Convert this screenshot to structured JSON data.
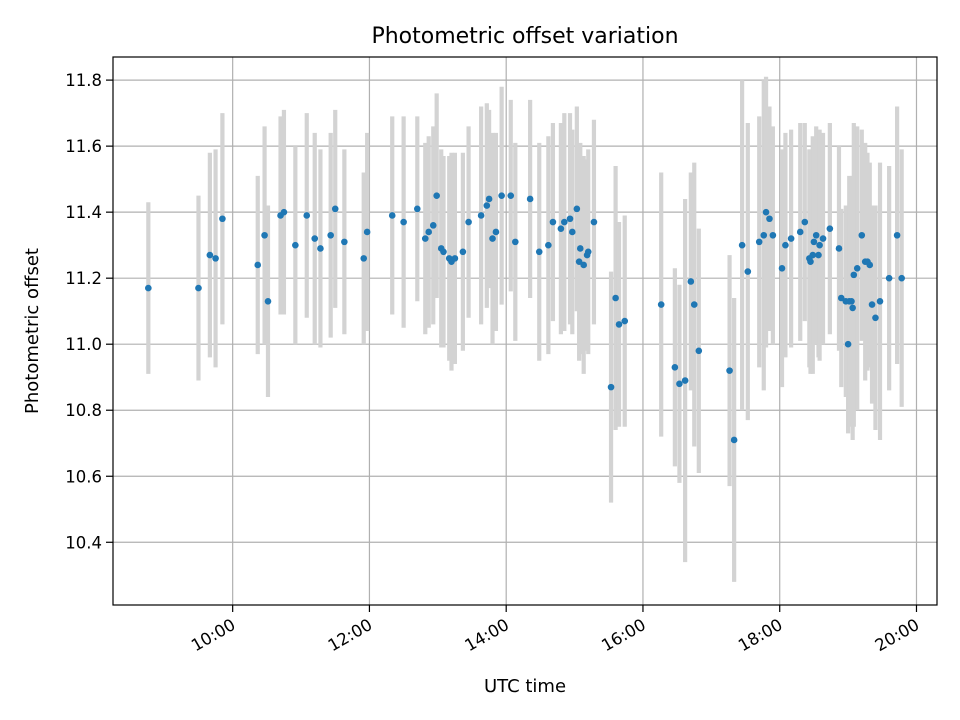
{
  "chart_data": {
    "type": "scatter",
    "title": "Photometric offset variation",
    "xlabel": "UTC time",
    "ylabel": "Photometric offset",
    "x_tick_labels": [
      "10:00",
      "12:00",
      "14:00",
      "16:00",
      "18:00",
      "20:00"
    ],
    "y_tick_labels": [
      "10.4",
      "10.6",
      "10.8",
      "11.0",
      "11.2",
      "11.4",
      "11.6",
      "11.8"
    ],
    "xlim": [
      "08:15",
      "20:18"
    ],
    "ylim": [
      10.21,
      11.87
    ],
    "grid": true,
    "colors": {
      "point": "#1f77b4",
      "errorbar": "#d3d3d3",
      "grid": "#b0b0b0"
    },
    "series": [
      {
        "x": [
          "08:46",
          "09:30",
          "09:40",
          "09:45",
          "09:51",
          "10:22",
          "10:28",
          "10:31",
          "10:42",
          "10:45",
          "10:55",
          "11:05",
          "11:12",
          "11:17",
          "11:26",
          "11:30",
          "11:38",
          "11:55",
          "11:58",
          "12:20",
          "12:30",
          "12:42",
          "12:49",
          "12:52",
          "12:56",
          "12:59",
          "13:03",
          "13:05",
          "13:10",
          "13:12",
          "13:15",
          "13:22",
          "13:27",
          "13:38",
          "13:43",
          "13:45",
          "13:48",
          "13:51",
          "13:56",
          "14:04",
          "14:08",
          "14:21",
          "14:29",
          "14:37",
          "14:41",
          "14:48",
          "14:51",
          "14:56",
          "14:58",
          "15:02",
          "15:04",
          "15:05",
          "15:08",
          "15:11",
          "15:12",
          "15:17",
          "15:32",
          "15:36",
          "15:39",
          "15:44",
          "16:16",
          "16:28",
          "16:32",
          "16:37",
          "16:42",
          "16:45",
          "16:49",
          "17:16",
          "17:20",
          "17:27",
          "17:32",
          "17:42",
          "17:46",
          "17:48",
          "17:51",
          "17:54",
          "18:02",
          "18:05",
          "18:10",
          "18:18",
          "18:22",
          "18:26",
          "18:27",
          "18:29",
          "18:30",
          "18:32",
          "18:34",
          "18:35",
          "18:38",
          "18:44",
          "18:52",
          "18:54",
          "18:58",
          "19:00",
          "19:01",
          "19:03",
          "19:04",
          "19:05",
          "19:08",
          "19:12",
          "19:15",
          "19:17",
          "19:19",
          "19:21",
          "19:24",
          "19:28",
          "19:36",
          "19:43",
          "19:47"
        ],
        "y": [
          11.17,
          11.17,
          11.27,
          11.26,
          11.38,
          11.24,
          11.33,
          11.13,
          11.39,
          11.4,
          11.3,
          11.39,
          11.32,
          11.29,
          11.33,
          11.41,
          11.31,
          11.26,
          11.34,
          11.39,
          11.37,
          11.41,
          11.32,
          11.34,
          11.36,
          11.45,
          11.29,
          11.28,
          11.26,
          11.25,
          11.26,
          11.28,
          11.37,
          11.39,
          11.42,
          11.44,
          11.32,
          11.34,
          11.45,
          11.45,
          11.31,
          11.44,
          11.28,
          11.3,
          11.37,
          11.35,
          11.37,
          11.38,
          11.34,
          11.41,
          11.25,
          11.29,
          11.24,
          11.27,
          11.28,
          11.37,
          10.87,
          11.14,
          11.06,
          11.07,
          11.12,
          10.93,
          10.88,
          10.89,
          11.19,
          11.12,
          10.98,
          10.92,
          10.71,
          11.3,
          11.22,
          11.31,
          11.33,
          11.4,
          11.38,
          11.33,
          11.23,
          11.3,
          11.32,
          11.34,
          11.37,
          11.26,
          11.25,
          11.27,
          11.31,
          11.33,
          11.27,
          11.3,
          11.32,
          11.35,
          11.29,
          11.14,
          11.13,
          11.0,
          11.13,
          11.13,
          11.11,
          11.21,
          11.23,
          11.33,
          11.25,
          11.25,
          11.24,
          11.12,
          11.08,
          11.13,
          11.2,
          11.33,
          11.2
        ],
        "error": [
          0.26,
          0.28,
          0.31,
          0.33,
          0.32,
          0.27,
          0.33,
          0.29,
          0.3,
          0.31,
          0.3,
          0.31,
          0.32,
          0.3,
          0.31,
          0.3,
          0.28,
          0.26,
          0.3,
          0.3,
          0.32,
          0.28,
          0.29,
          0.29,
          0.3,
          0.31,
          0.3,
          0.29,
          0.31,
          0.33,
          0.32,
          0.3,
          0.29,
          0.33,
          0.31,
          0.27,
          0.32,
          0.3,
          0.33,
          0.29,
          0.3,
          0.3,
          0.33,
          0.33,
          0.3,
          0.32,
          0.33,
          0.32,
          0.31,
          0.31,
          0.3,
          0.32,
          0.33,
          0.29,
          0.31,
          0.31,
          0.35,
          0.4,
          0.31,
          0.32,
          0.4,
          0.3,
          0.3,
          0.55,
          0.33,
          0.43,
          0.37,
          0.35,
          0.43,
          0.5,
          0.45,
          0.38,
          0.47,
          0.41,
          0.34,
          0.33,
          0.36,
          0.34,
          0.33,
          0.33,
          0.3,
          0.33,
          0.34,
          0.36,
          0.31,
          0.33,
          0.31,
          0.35,
          0.32,
          0.32,
          0.31,
          0.27,
          0.29,
          0.27,
          0.38,
          0.37,
          0.4,
          0.46,
          0.43,
          0.32,
          0.36,
          0.33,
          0.31,
          0.3,
          0.34,
          0.42,
          0.34,
          0.39,
          0.39
        ]
      }
    ]
  }
}
